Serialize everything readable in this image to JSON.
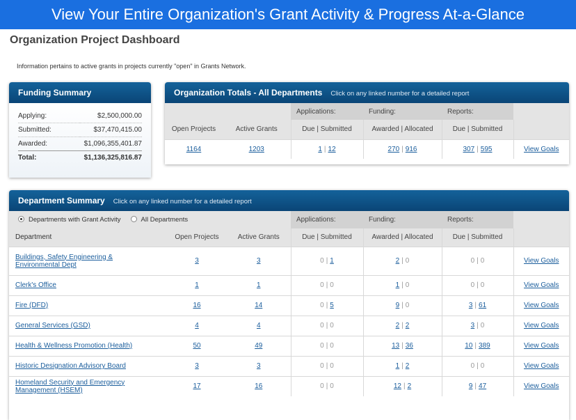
{
  "banner": "View Your Entire Organization's Grant Activity & Progress At-a-Glance",
  "page_title": "Organization Project Dashboard",
  "info": "Information pertains to active grants in projects currently \"open\" in Grants Network.",
  "separator": "|",
  "link": "View Goals",
  "funding_summary": {
    "title": "Funding Summary",
    "rows": [
      [
        "Applying:",
        "$2,500,000.00"
      ],
      [
        "Submitted:",
        "$37,470,415.00"
      ],
      [
        "Awarded:",
        "$1,096,355,401.87"
      ],
      [
        "Total:",
        "$1,136,325,816.87"
      ]
    ]
  },
  "org_totals": {
    "title": "Organization Totals - All Departments",
    "hint": "Click on any linked number for a detailed report",
    "groups": [
      "Applications:",
      "Funding:",
      "Reports:"
    ],
    "headers": [
      "Open Projects",
      "Active Grants",
      "Due | Submitted",
      "Awarded | Allocated",
      "Due | Submitted"
    ],
    "row": {
      "open_projects": 1164,
      "active_grants": 1203,
      "applications": [
        1,
        12
      ],
      "funding": [
        270,
        916
      ],
      "reports": [
        307,
        595
      ]
    }
  },
  "department_summary": {
    "title": "Department Summary",
    "hint": "Click on any linked number for a detailed report",
    "filters": [
      "Departments with Grant Activity",
      "All Departments"
    ],
    "groups": [
      "Applications:",
      "Funding:",
      "Reports:"
    ],
    "headers": [
      "Department",
      "Open Projects",
      "Active Grants",
      "Due | Submitted",
      "Awarded | Allocated",
      "Due | Submitted"
    ],
    "rows": [
      {
        "name": "Buildings, Safety Engineering & Environmental Dept",
        "open_projects": 3,
        "active_grants": 3,
        "applications": [
          0,
          1
        ],
        "funding": [
          2,
          0
        ],
        "reports": [
          0,
          0
        ]
      },
      {
        "name": "Clerk's Office",
        "open_projects": 1,
        "active_grants": 1,
        "applications": [
          0,
          0
        ],
        "funding": [
          1,
          0
        ],
        "reports": [
          0,
          0
        ]
      },
      {
        "name": "Fire (DFD)",
        "open_projects": 16,
        "active_grants": 14,
        "applications": [
          0,
          5
        ],
        "funding": [
          9,
          0
        ],
        "reports": [
          3,
          61
        ]
      },
      {
        "name": "General Services (GSD)",
        "open_projects": 4,
        "active_grants": 4,
        "applications": [
          0,
          0
        ],
        "funding": [
          2,
          2
        ],
        "reports": [
          3,
          0
        ]
      },
      {
        "name": "Health & Wellness Promotion (Health)",
        "open_projects": 50,
        "active_grants": 49,
        "applications": [
          0,
          0
        ],
        "funding": [
          13,
          36
        ],
        "reports": [
          10,
          389
        ]
      },
      {
        "name": "Historic Designation Advisory Board",
        "open_projects": 3,
        "active_grants": 3,
        "applications": [
          0,
          0
        ],
        "funding": [
          1,
          2
        ],
        "reports": [
          0,
          0
        ]
      },
      {
        "name": "Homeland Security and Emergency Management (HSEM)",
        "open_projects": 17,
        "active_grants": 16,
        "applications": [
          0,
          0
        ],
        "funding": [
          12,
          2
        ],
        "reports": [
          9,
          47
        ]
      }
    ]
  }
}
